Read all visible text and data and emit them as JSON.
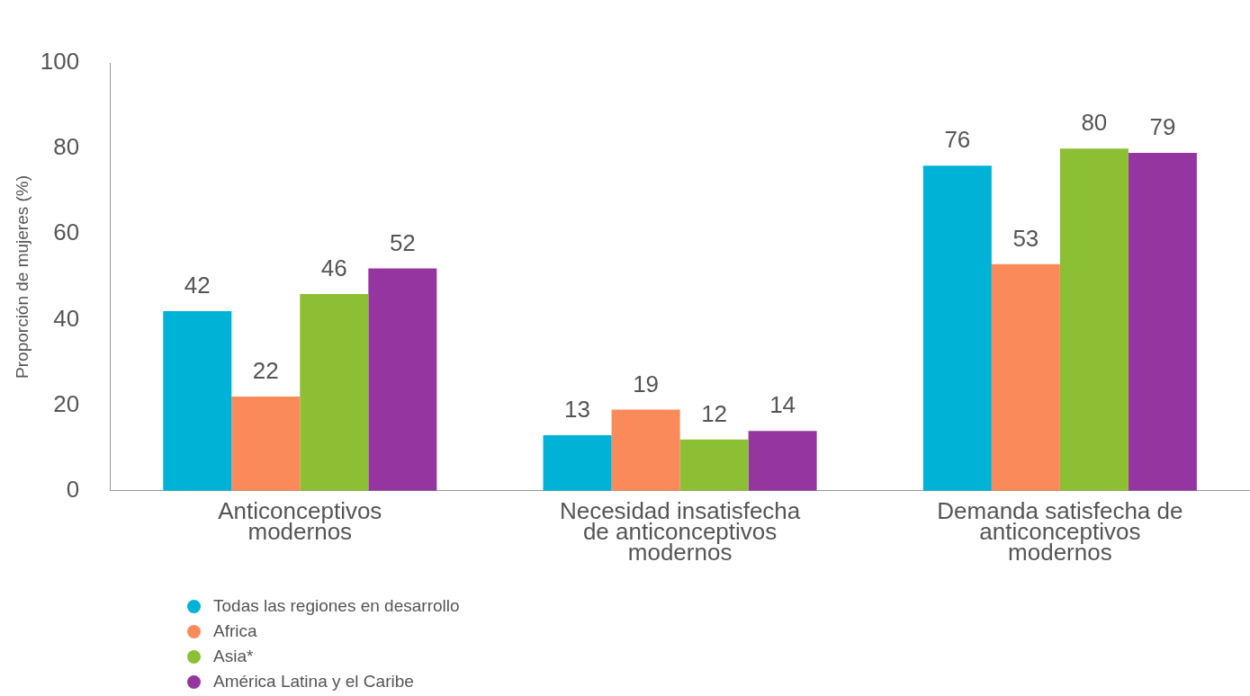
{
  "chart_data": {
    "type": "bar",
    "ylabel": "Proporción de mujeres (%)",
    "categories": [
      "Anticonceptivos modernos",
      "Necesidad insatisfecha de anticonceptivos modernos",
      "Demanda satisfecha de anticonceptivos modernos"
    ],
    "series": [
      {
        "name": "Todas las regiones en desarrollo",
        "color": "#00b2d6",
        "values": [
          42,
          13,
          76
        ]
      },
      {
        "name": "Africa",
        "color": "#fb8a5a",
        "values": [
          22,
          19,
          53
        ]
      },
      {
        "name": "Asia*",
        "color": "#8cbf33",
        "values": [
          46,
          12,
          80
        ]
      },
      {
        "name": "América Latina y el Caribe",
        "color": "#9535a0",
        "values": [
          52,
          14,
          79
        ]
      }
    ],
    "ylim": [
      0,
      100
    ],
    "yticks": [
      0,
      20,
      40,
      60,
      80,
      100
    ],
    "grid": false,
    "legend": "bottom left",
    "data_labels": true,
    "marker": "circle"
  }
}
